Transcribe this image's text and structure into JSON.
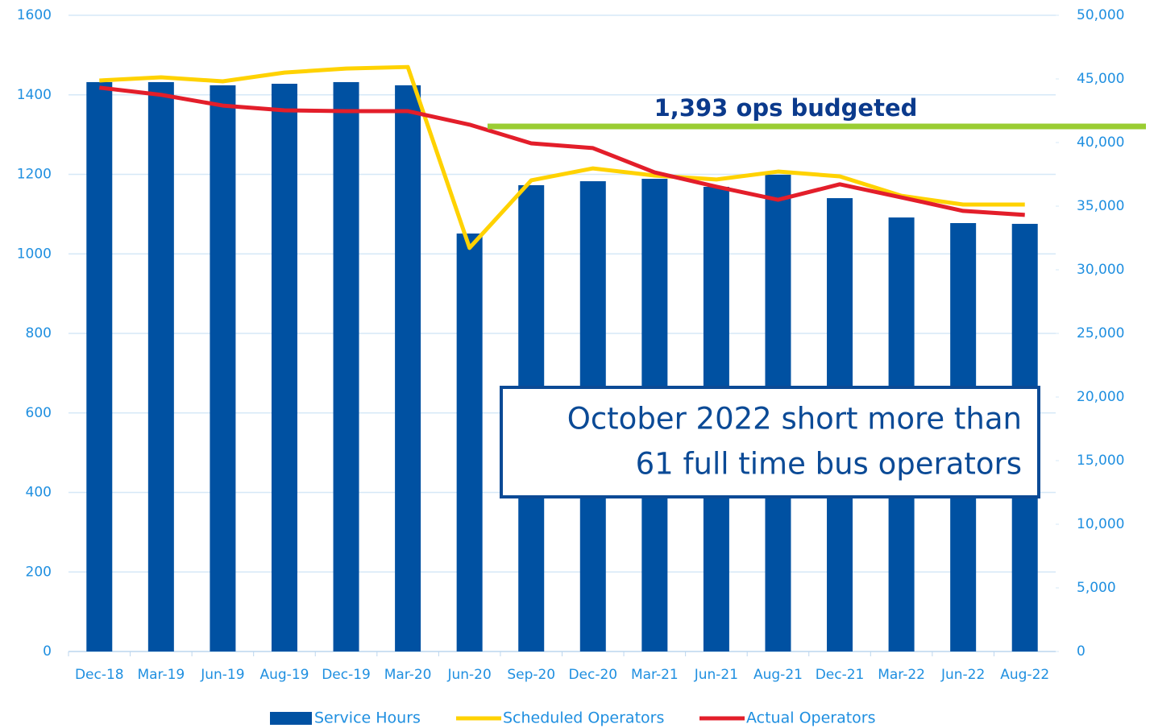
{
  "chart_data": {
    "type": "bar_line",
    "categories": [
      "Dec-18",
      "Mar-19",
      "Jun-19",
      "Aug-19",
      "Dec-19",
      "Mar-20",
      "Jun-20",
      "Sep-20",
      "Dec-20",
      "Mar-21",
      "Jun-21",
      "Aug-21",
      "Dec-21",
      "Mar-22",
      "Jun-22",
      "Aug-22"
    ],
    "series": [
      {
        "name": "Service Hours",
        "type": "bar",
        "axis": "y2",
        "color": "#0051a2",
        "values": [
          44750,
          44750,
          44500,
          44620,
          44750,
          44500,
          32850,
          36650,
          36960,
          37150,
          36520,
          37470,
          35630,
          34110,
          33670,
          33610
        ]
      },
      {
        "name": "Scheduled Operators",
        "type": "line",
        "color": "#ffd200",
        "values": [
          1436,
          1444,
          1434,
          1456,
          1466,
          1470,
          1015,
          1185,
          1215,
          1197,
          1187,
          1207,
          1195,
          1146,
          1124,
          1124
        ]
      },
      {
        "name": "Actual Operators",
        "type": "line",
        "color": "#e31e2a",
        "values": [
          1418,
          1400,
          1373,
          1361,
          1359,
          1359,
          1325,
          1278,
          1266,
          1205,
          1169,
          1136,
          1175,
          1142,
          1108,
          1098
        ]
      }
    ],
    "ylim": [
      0,
      1600
    ],
    "yticks": [
      0,
      200,
      400,
      600,
      800,
      1000,
      1200,
      1400,
      1600
    ],
    "y2lim": [
      0,
      50000
    ],
    "y2ticks": [
      0,
      {
        "value": 5000,
        "label": "5,000"
      },
      {
        "value": 10000,
        "label": "10,000"
      },
      {
        "value": 15000,
        "label": "15,000"
      },
      {
        "value": 20000,
        "label": "20,000"
      },
      {
        "value": 25000,
        "label": "25,000"
      },
      {
        "value": 30000,
        "label": "30,000"
      },
      {
        "value": 35000,
        "label": "35,000"
      },
      {
        "value": 40000,
        "label": "40,000"
      },
      {
        "value": 45000,
        "label": "45,000"
      },
      {
        "value": 50000,
        "label": "50,000"
      }
    ],
    "grid": true,
    "legend": "bottom",
    "annotations": [
      "1,393 ops budgeted",
      "October 2022 short more than",
      "61 full time bus operators"
    ]
  }
}
